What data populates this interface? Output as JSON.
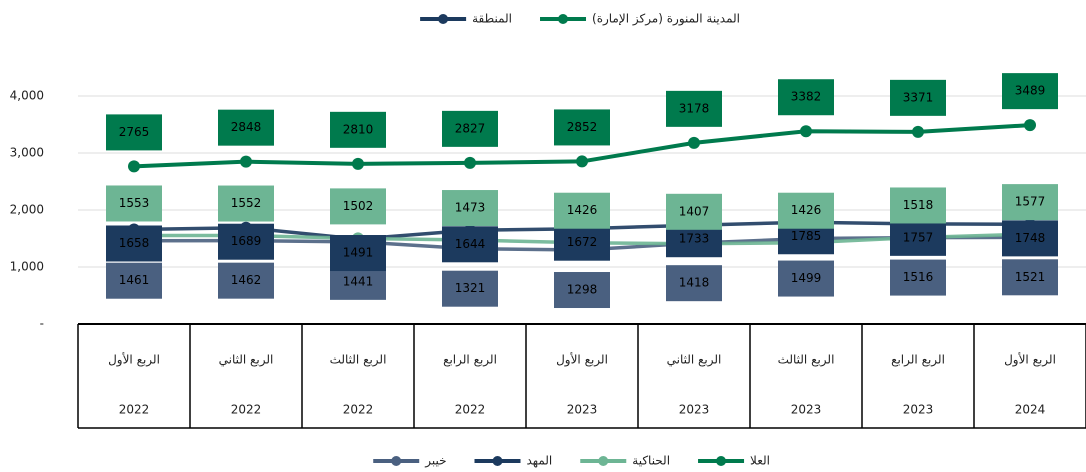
{
  "chart_data": {
    "type": "line",
    "categories": [
      "الربع الأول",
      "الربع الثاني",
      "الربع الثالث",
      "الربع الرابع",
      "الربع الأول",
      "الربع الثاني",
      "الربع الثالث",
      "الربع الرابع",
      "الربع الأول"
    ],
    "years": [
      "2022",
      "2022",
      "2022",
      "2022",
      "2023",
      "2023",
      "2023",
      "2023",
      "2024"
    ],
    "series": [
      {
        "name": "المدينة المنورة (مركز الإمارة)",
        "color": "#007a4d",
        "legend": "top",
        "values": [
          2765,
          2848,
          2810,
          2827,
          2852,
          3178,
          3382,
          3371,
          3489
        ]
      },
      {
        "name": "المنطقة",
        "color": "#1c3a5e",
        "legend": "top",
        "values": [
          null,
          null,
          null,
          null,
          null,
          null,
          null,
          null,
          null
        ]
      },
      {
        "name": "العلا",
        "color": "#007a4d",
        "legend": "bottom",
        "values": [
          null,
          null,
          null,
          null,
          null,
          null,
          null,
          null,
          null
        ]
      },
      {
        "name": "الحناكية",
        "color": "#6db594",
        "legend": "bottom",
        "values": [
          1553,
          1552,
          1502,
          1473,
          1426,
          1407,
          1426,
          1518,
          1577
        ]
      },
      {
        "name": "المهد",
        "color": "#1c3a5e",
        "legend": "bottom",
        "values": [
          1658,
          1689,
          1491,
          1644,
          1672,
          1733,
          1785,
          1757,
          1748
        ]
      },
      {
        "name": "خيبر",
        "color": "#4a6080",
        "legend": "bottom",
        "values": [
          1461,
          1462,
          1441,
          1321,
          1298,
          1418,
          1499,
          1516,
          1521
        ]
      }
    ],
    "ylim": [
      0,
      4000
    ],
    "yticks": [
      {
        "value": 0,
        "label": "-"
      },
      {
        "value": 1000,
        "label": "1,000"
      },
      {
        "value": 2000,
        "label": "2,000"
      },
      {
        "value": 3000,
        "label": "3,000"
      },
      {
        "value": 4000,
        "label": "4,000"
      }
    ],
    "grid": true
  }
}
